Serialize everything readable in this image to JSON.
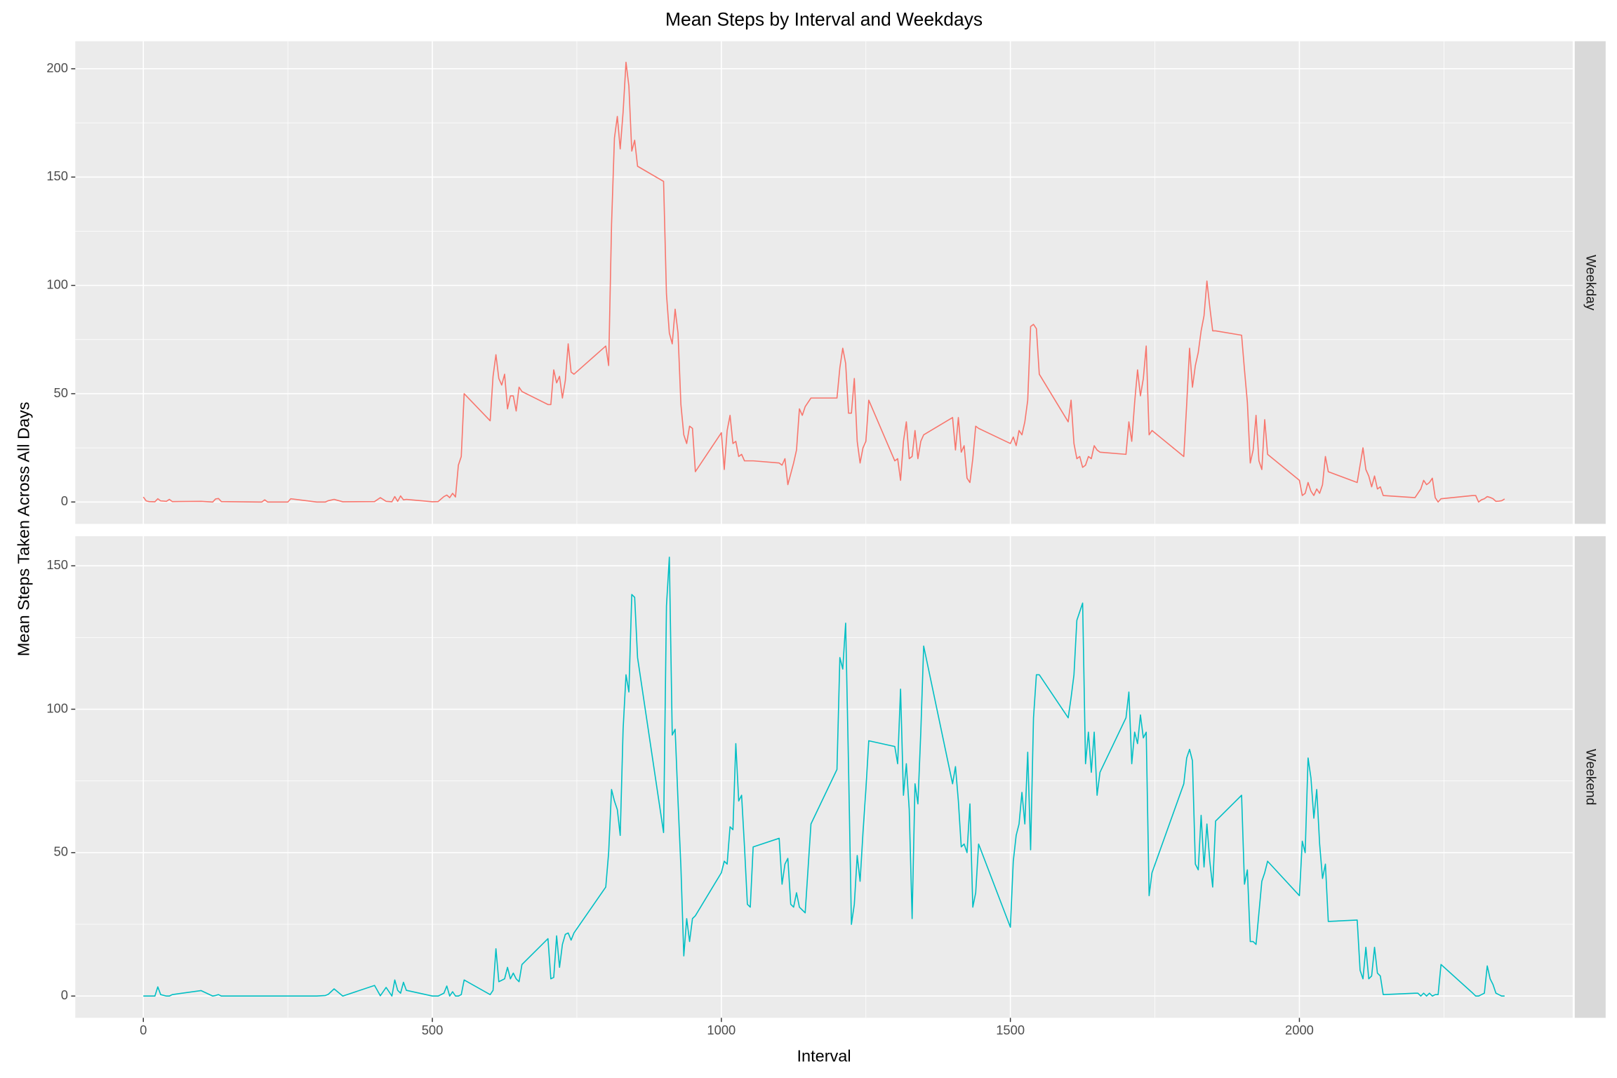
{
  "chart_data": {
    "type": "line",
    "title": "Mean Steps by Interval and Weekdays",
    "x_label": "Interval",
    "y_label": "Mean Steps Taken Across All Days",
    "grid": true,
    "xlim": [
      -117.75,
      2472.75
    ],
    "xticks": [
      0,
      500,
      1000,
      1500,
      2000
    ],
    "x": [
      0,
      5,
      10,
      20,
      25,
      30,
      40,
      45,
      50,
      100,
      120,
      125,
      130,
      135,
      200,
      205,
      210,
      215,
      250,
      255,
      300,
      315,
      320,
      330,
      345,
      400,
      410,
      420,
      430,
      435,
      440,
      445,
      450,
      455,
      500,
      510,
      520,
      525,
      530,
      535,
      540,
      545,
      550,
      555,
      600,
      605,
      610,
      615,
      620,
      625,
      630,
      635,
      640,
      645,
      650,
      655,
      700,
      705,
      710,
      715,
      720,
      725,
      730,
      735,
      740,
      745,
      800,
      805,
      810,
      815,
      820,
      825,
      830,
      835,
      840,
      845,
      850,
      855,
      900,
      905,
      910,
      915,
      920,
      925,
      930,
      935,
      940,
      945,
      950,
      955,
      1000,
      1005,
      1010,
      1015,
      1020,
      1025,
      1030,
      1035,
      1040,
      1045,
      1050,
      1055,
      1100,
      1105,
      1110,
      1115,
      1120,
      1125,
      1130,
      1135,
      1140,
      1145,
      1155,
      1200,
      1205,
      1210,
      1215,
      1220,
      1225,
      1230,
      1235,
      1240,
      1245,
      1250,
      1255,
      1300,
      1305,
      1310,
      1315,
      1320,
      1325,
      1330,
      1335,
      1340,
      1345,
      1350,
      1400,
      1405,
      1410,
      1415,
      1420,
      1425,
      1430,
      1435,
      1440,
      1445,
      1500,
      1505,
      1510,
      1515,
      1520,
      1525,
      1530,
      1535,
      1540,
      1545,
      1550,
      1600,
      1605,
      1610,
      1615,
      1620,
      1625,
      1630,
      1635,
      1640,
      1645,
      1650,
      1655,
      1700,
      1705,
      1710,
      1715,
      1720,
      1725,
      1730,
      1735,
      1740,
      1745,
      1800,
      1805,
      1810,
      1815,
      1820,
      1825,
      1830,
      1835,
      1840,
      1845,
      1850,
      1855,
      1900,
      1905,
      1910,
      1915,
      1920,
      1925,
      1930,
      1935,
      1940,
      1945,
      2000,
      2005,
      2010,
      2015,
      2020,
      2025,
      2030,
      2035,
      2040,
      2045,
      2050,
      2100,
      2105,
      2110,
      2115,
      2120,
      2125,
      2130,
      2135,
      2140,
      2145,
      2200,
      2205,
      2210,
      2215,
      2220,
      2225,
      2230,
      2235,
      2240,
      2245,
      2300,
      2305,
      2310,
      2315,
      2320,
      2325,
      2330,
      2335,
      2340,
      2345,
      2350,
      2355
    ],
    "facets": [
      {
        "label": "Weekday",
        "color": "#F8766D",
        "ylim": [
          -10.1,
          212.7
        ],
        "yticks": [
          0,
          50,
          100,
          150,
          200
        ],
        "values": [
          2.3,
          0.5,
          0.2,
          0.1,
          1.5,
          0.5,
          0.3,
          1.2,
          0.2,
          0.3,
          0,
          1.4,
          1.6,
          0.2,
          0,
          0,
          1,
          0,
          0,
          1.5,
          0,
          0,
          0.6,
          1.2,
          0.1,
          0.2,
          2,
          0.3,
          0.1,
          2.5,
          0.3,
          2.8,
          1,
          1.2,
          0.1,
          0.2,
          2.5,
          3.2,
          2,
          4,
          2.3,
          17,
          21,
          50,
          37.5,
          58,
          68,
          57,
          54,
          59,
          43,
          49,
          49,
          42,
          53,
          51,
          45,
          45,
          61,
          55,
          58,
          48,
          56,
          73,
          60,
          59,
          72,
          63,
          128,
          168,
          178,
          163,
          180,
          203,
          192,
          162,
          167,
          155,
          148,
          96,
          78,
          73,
          89,
          78,
          45,
          31,
          27,
          35,
          34,
          14,
          32,
          15,
          33,
          40,
          27,
          28,
          21,
          22,
          19,
          19,
          19,
          19,
          18,
          17,
          20,
          8,
          13,
          18,
          24,
          43,
          40,
          44,
          48,
          48,
          62,
          71,
          64,
          41,
          41,
          57,
          28,
          18,
          25,
          28,
          47,
          19,
          20,
          10,
          28,
          37,
          20,
          21,
          33,
          20,
          28,
          31,
          39,
          24,
          39,
          23,
          26,
          11,
          9,
          20,
          35,
          34,
          27,
          30,
          26,
          33,
          31,
          37,
          47,
          81,
          82,
          80,
          59,
          37,
          47,
          27,
          20,
          21,
          16,
          17,
          21,
          20,
          26,
          24,
          23,
          22,
          37,
          28,
          46,
          61,
          49,
          57,
          72,
          31,
          33,
          21,
          45,
          71,
          53,
          63,
          69,
          79,
          86,
          102,
          90,
          79,
          79,
          77,
          61,
          46,
          18,
          24,
          40,
          19,
          15,
          38,
          22,
          10,
          3,
          4,
          9,
          5,
          3,
          6,
          4,
          8,
          21,
          14,
          9,
          17,
          25,
          15,
          12,
          7,
          12,
          6,
          7,
          3,
          2,
          4,
          6,
          10,
          8,
          9,
          11,
          2,
          0,
          1.5,
          3,
          3,
          0,
          1,
          1.5,
          2.5,
          2.1,
          1.5,
          0.3,
          0.4,
          0.6,
          1.4
        ]
      },
      {
        "label": "Weekend",
        "color": "#00BFC4",
        "ylim": [
          -7.6,
          160.3
        ],
        "yticks": [
          0,
          50,
          100,
          150
        ],
        "values": [
          0,
          0,
          0,
          0,
          3.2,
          0.5,
          0,
          0,
          0.5,
          1.9,
          0,
          0.2,
          0.5,
          0,
          0,
          0,
          0,
          0,
          0,
          0,
          0,
          0.2,
          0.6,
          2.5,
          0,
          3.7,
          0.1,
          3,
          0,
          5.6,
          2,
          1,
          4.8,
          2,
          0,
          0,
          1,
          3.5,
          0,
          1.5,
          0,
          0,
          0.5,
          5.6,
          0.5,
          2,
          16.5,
          5,
          5.5,
          6,
          10,
          6,
          8,
          6,
          5,
          11,
          20,
          6,
          6.5,
          21,
          10,
          18,
          21.5,
          22,
          19.5,
          22,
          38,
          50,
          72,
          68,
          65,
          56,
          93,
          112,
          106,
          140,
          139,
          118,
          57,
          136,
          153,
          91,
          93,
          68,
          45,
          14,
          27,
          19,
          27,
          28,
          43,
          47,
          46,
          59,
          58,
          88,
          68,
          70,
          52,
          32,
          31,
          52,
          55,
          39,
          46,
          48,
          32,
          31,
          36,
          31,
          30,
          29,
          60,
          79,
          118,
          114,
          130,
          80,
          25,
          32,
          49,
          40,
          57,
          72,
          89,
          87,
          81,
          107,
          70,
          81,
          65,
          27,
          74,
          67,
          92,
          122,
          74,
          80,
          68,
          52,
          53,
          50,
          67,
          31,
          36,
          53,
          24,
          47,
          56,
          60,
          71,
          60,
          85,
          51,
          97,
          112,
          112,
          97,
          104,
          112,
          131,
          134,
          137,
          81,
          92,
          78,
          92,
          70,
          78,
          97,
          106,
          81,
          92,
          88,
          98,
          90,
          92,
          35,
          43,
          74,
          83,
          86,
          82,
          46,
          44,
          63,
          45,
          60,
          47,
          38,
          61,
          70,
          39,
          44,
          19,
          19,
          18,
          29,
          40,
          43,
          47,
          35,
          54,
          50,
          83,
          76,
          62,
          72,
          53,
          41,
          46,
          26,
          26.5,
          9,
          6,
          17,
          6,
          7,
          17,
          8,
          7,
          0.5,
          1,
          1,
          0,
          1,
          0,
          1,
          0,
          0.5,
          0.5,
          11,
          1,
          0,
          0,
          0.5,
          1,
          10.5,
          6,
          4,
          1,
          0.5,
          0,
          0
        ]
      }
    ]
  }
}
